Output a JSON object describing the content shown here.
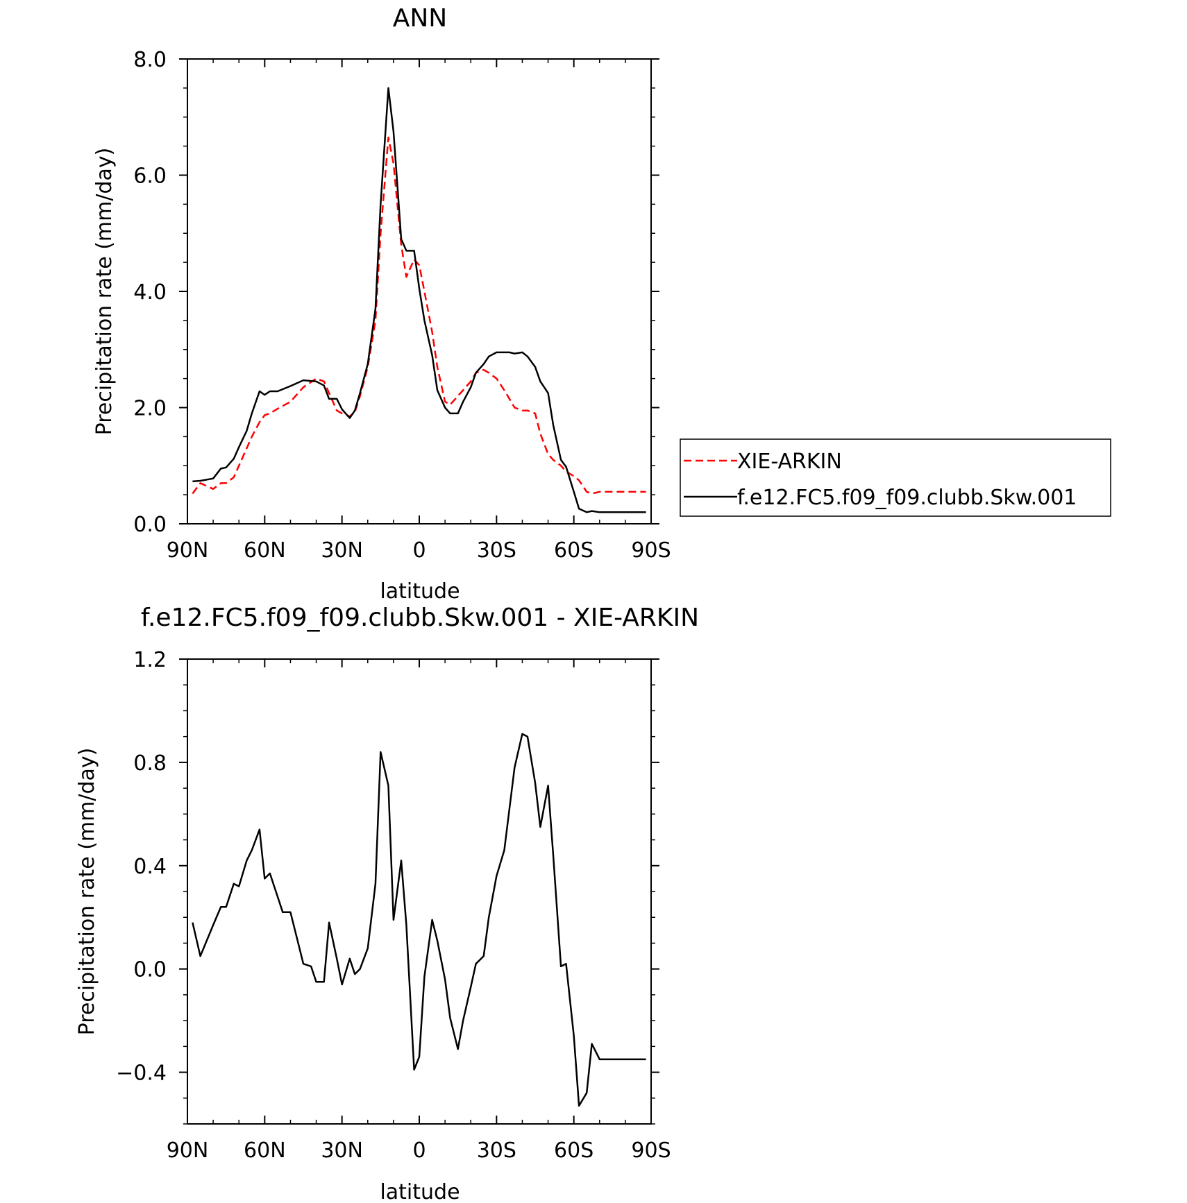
{
  "figure": {
    "background": "#ffffff"
  },
  "chart_data": [
    {
      "type": "line",
      "title": "ANN",
      "xlabel": "latitude",
      "ylabel": "Precipitation rate (mm/day)",
      "xlim": [
        90,
        -90
      ],
      "ylim": [
        0.0,
        8.0
      ],
      "xtick_values": [
        90,
        60,
        30,
        0,
        -30,
        -60,
        -90
      ],
      "xtick_labels": [
        "90N",
        "60N",
        "30N",
        "0",
        "30S",
        "60S",
        "90S"
      ],
      "ytick_values": [
        0,
        2,
        4,
        6,
        8
      ],
      "ytick_labels": [
        "0.0",
        "2.0",
        "4.0",
        "6.0",
        "8.0"
      ],
      "legend": {
        "placement": "right-middle"
      },
      "x": [
        88,
        85,
        80,
        77,
        75,
        72,
        70,
        67,
        65,
        62,
        60,
        58,
        55,
        50,
        45,
        40,
        37,
        35,
        32,
        30,
        27,
        25,
        23,
        20,
        17,
        15,
        12,
        10,
        7,
        5,
        2,
        0,
        -2,
        -5,
        -7,
        -10,
        -12,
        -15,
        -17,
        -20,
        -22,
        -25,
        -27,
        -30,
        -33,
        -35,
        -37,
        -40,
        -42,
        -45,
        -47,
        -50,
        -52,
        -55,
        -57,
        -60,
        -62,
        -65,
        -67,
        -70,
        -72,
        -75,
        -77,
        -80,
        -82,
        -85,
        -88
      ],
      "series": [
        {
          "name": "XIE-ARKIN",
          "color": "#ff0000",
          "dash": "dashed",
          "values": [
            0.52,
            0.7,
            0.6,
            0.7,
            0.7,
            0.8,
            1.0,
            1.3,
            1.5,
            1.75,
            1.87,
            1.9,
            1.98,
            2.1,
            2.35,
            2.5,
            2.45,
            2.25,
            1.95,
            1.9,
            1.85,
            1.92,
            2.2,
            2.7,
            3.5,
            5.0,
            6.65,
            6.2,
            4.8,
            4.25,
            4.55,
            4.45,
            4.0,
            3.3,
            2.7,
            2.1,
            2.05,
            2.2,
            2.3,
            2.45,
            2.6,
            2.65,
            2.6,
            2.5,
            2.3,
            2.15,
            2.0,
            1.95,
            1.95,
            1.9,
            1.55,
            1.2,
            1.1,
            1.0,
            0.9,
            0.82,
            0.75,
            0.55,
            0.52,
            0.55,
            0.55,
            0.55,
            0.55,
            0.55,
            0.55,
            0.55,
            0.55
          ]
        },
        {
          "name": "f.e12.FC5.f09_f09.clubb.Skw.001",
          "color": "#000000",
          "dash": "solid",
          "values": [
            0.73,
            0.74,
            0.78,
            0.95,
            0.97,
            1.12,
            1.32,
            1.6,
            1.9,
            2.28,
            2.22,
            2.28,
            2.28,
            2.37,
            2.47,
            2.45,
            2.38,
            2.15,
            2.15,
            1.97,
            1.82,
            1.95,
            2.25,
            2.75,
            3.7,
            5.5,
            7.5,
            6.75,
            4.9,
            4.7,
            4.7,
            4.05,
            3.5,
            2.9,
            2.3,
            2.0,
            1.9,
            1.9,
            2.1,
            2.35,
            2.6,
            2.75,
            2.88,
            2.95,
            2.95,
            2.95,
            2.93,
            2.95,
            2.88,
            2.7,
            2.45,
            2.25,
            1.7,
            1.1,
            0.98,
            0.55,
            0.26,
            0.2,
            0.22,
            0.2,
            0.2,
            0.2,
            0.2,
            0.2,
            0.2,
            0.2,
            0.2
          ]
        }
      ]
    },
    {
      "type": "line",
      "title": "f.e12.FC5.f09_f09.clubb.Skw.001 - XIE-ARKIN",
      "xlabel": "latitude",
      "ylabel": "Precipitation rate (mm/day)",
      "xlim": [
        90,
        -90
      ],
      "ylim": [
        -0.6,
        1.2
      ],
      "xtick_values": [
        90,
        60,
        30,
        0,
        -30,
        -60,
        -90
      ],
      "xtick_labels": [
        "90N",
        "60N",
        "30N",
        "0",
        "30S",
        "60S",
        "90S"
      ],
      "ytick_values": [
        -0.4,
        0.0,
        0.4,
        0.8,
        1.2
      ],
      "ytick_labels": [
        "−0.4",
        "0.0",
        "0.4",
        "0.8",
        "1.2"
      ],
      "x": [
        88,
        85,
        80,
        77,
        75,
        72,
        70,
        67,
        65,
        62,
        60,
        58,
        55,
        53,
        50,
        47,
        45,
        42,
        40,
        37,
        35,
        32,
        30,
        27,
        25,
        23,
        20,
        17,
        15,
        12,
        10,
        7,
        5,
        2,
        0,
        -2,
        -5,
        -7,
        -10,
        -12,
        -15,
        -17,
        -20,
        -22,
        -25,
        -27,
        -30,
        -33,
        -35,
        -37,
        -40,
        -42,
        -45,
        -47,
        -50,
        -52,
        -55,
        -57,
        -60,
        -62,
        -65,
        -67,
        -70,
        -72,
        -75,
        -77,
        -80,
        -82,
        -85,
        -88
      ],
      "series": [
        {
          "name": "",
          "color": "#000000",
          "dash": "solid",
          "values": [
            0.18,
            0.05,
            0.17,
            0.24,
            0.24,
            0.33,
            0.32,
            0.42,
            0.46,
            0.54,
            0.35,
            0.37,
            0.28,
            0.22,
            0.22,
            0.1,
            0.02,
            0.01,
            -0.05,
            -0.05,
            0.18,
            0.04,
            -0.06,
            0.04,
            -0.02,
            0.0,
            0.08,
            0.33,
            0.84,
            0.71,
            0.19,
            0.42,
            0.17,
            -0.39,
            -0.34,
            -0.03,
            0.19,
            0.11,
            -0.04,
            -0.19,
            -0.31,
            -0.2,
            -0.07,
            0.02,
            0.05,
            0.2,
            0.36,
            0.46,
            0.62,
            0.78,
            0.91,
            0.9,
            0.72,
            0.55,
            0.71,
            0.44,
            0.01,
            0.02,
            -0.26,
            -0.53,
            -0.48,
            -0.29,
            -0.35,
            -0.35,
            -0.35,
            -0.35,
            -0.35,
            -0.35,
            -0.35,
            -0.35
          ]
        }
      ]
    }
  ]
}
